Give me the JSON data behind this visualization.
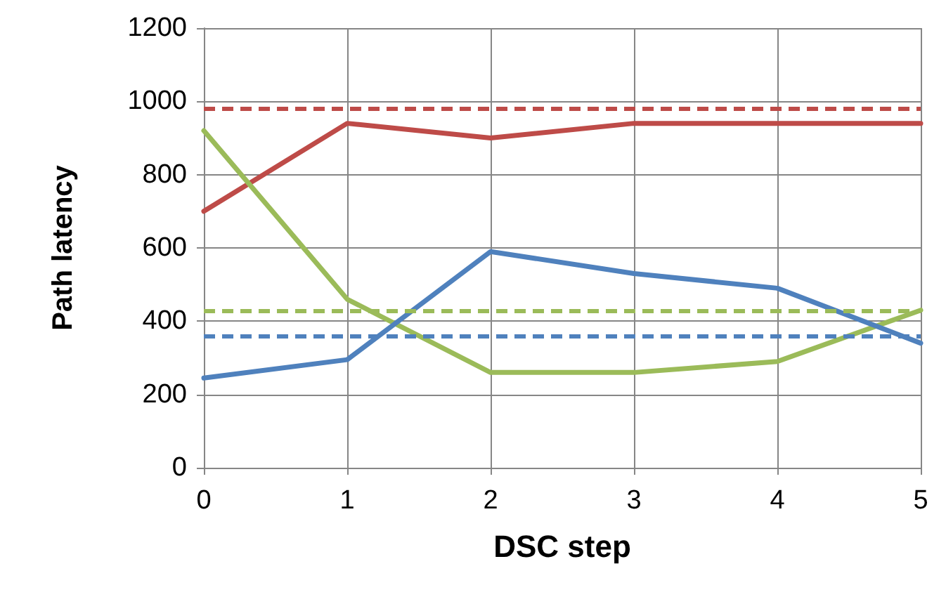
{
  "chart_data": {
    "type": "line",
    "xlabel": "DSC step",
    "ylabel": "Path latency",
    "x": [
      0,
      1,
      2,
      3,
      4,
      5
    ],
    "series": [
      {
        "color": "#be4b48",
        "values": [
          700,
          940,
          900,
          940,
          940,
          940
        ]
      },
      {
        "color": "#9bbb59",
        "values": [
          920,
          460,
          260,
          260,
          290,
          430
        ]
      },
      {
        "color": "#4f81bd",
        "values": [
          245,
          295,
          590,
          530,
          490,
          340
        ]
      }
    ],
    "ref_lines": [
      {
        "axis": "y",
        "value": 980,
        "color": "#be4b48",
        "line_style": "dashed"
      },
      {
        "axis": "y",
        "value": 430,
        "color": "#9bbb59",
        "line_style": "dashed"
      },
      {
        "axis": "y",
        "value": 360,
        "color": "#4f81bd",
        "line_style": "dashed"
      }
    ],
    "xlim": [
      0,
      5
    ],
    "xticks": [
      0,
      1,
      2,
      3,
      4,
      5
    ],
    "ylim": [
      0,
      1200
    ],
    "yticks": [
      0,
      200,
      400,
      600,
      800,
      1000,
      1200
    ],
    "grid": true,
    "marker": "none",
    "line_style": "solid"
  }
}
